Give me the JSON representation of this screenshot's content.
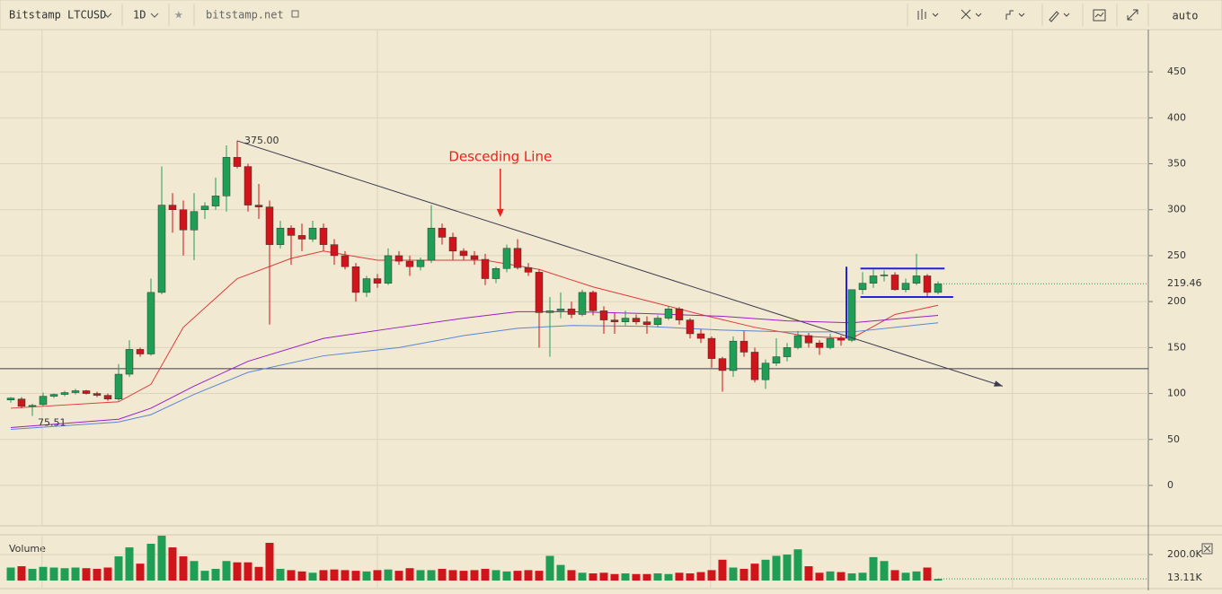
{
  "toolbar": {
    "symbol": "Bitstamp LTCUSD",
    "interval": "1D",
    "source": "bitstamp.net",
    "scale": "auto"
  },
  "chart_data": {
    "type": "candlestick",
    "up_color": "#1f9e55",
    "down_color": "#d0141b",
    "xlim": [
      -1,
      105.5
    ],
    "ylim": [
      -43,
      496
    ],
    "yticks": [
      0,
      50,
      100,
      150,
      200,
      250,
      300,
      350,
      400,
      450
    ],
    "xgrid": [
      2.9,
      34,
      64.9,
      92.9
    ],
    "grid": true,
    "open": [
      93,
      94,
      86,
      88,
      97,
      99,
      101,
      103,
      100,
      98,
      94,
      121,
      148,
      143,
      210,
      305,
      300,
      278,
      300,
      304,
      315,
      357,
      347,
      305,
      303,
      262,
      280,
      272,
      268,
      280,
      262,
      250,
      238,
      210,
      225,
      220,
      250,
      244,
      238,
      245,
      280,
      270,
      255,
      250,
      246,
      225,
      236,
      258,
      237,
      232,
      188,
      190,
      192,
      186,
      210,
      190,
      180,
      178,
      182,
      178,
      175,
      182,
      192,
      180,
      165,
      160,
      138,
      125,
      157,
      145,
      115,
      133,
      140,
      150,
      163,
      155,
      150,
      160,
      158,
      213,
      220,
      228,
      229,
      213,
      220,
      228,
      210
    ],
    "high": [
      96,
      96,
      89,
      101,
      100,
      103,
      105,
      104,
      102,
      100,
      132,
      158,
      150,
      225,
      347,
      318,
      310,
      318,
      308,
      335,
      370,
      375,
      350,
      328,
      310,
      288,
      283,
      285,
      288,
      285,
      268,
      255,
      242,
      228,
      230,
      258,
      255,
      250,
      248,
      305,
      285,
      275,
      258,
      255,
      252,
      238,
      262,
      268,
      242,
      235,
      205,
      210,
      200,
      213,
      212,
      195,
      188,
      190,
      186,
      184,
      185,
      195,
      194,
      182,
      170,
      162,
      140,
      162,
      168,
      150,
      137,
      160,
      155,
      168,
      166,
      158,
      165,
      163,
      213,
      232,
      235,
      234,
      232,
      225,
      252,
      230,
      222
    ],
    "low": [
      90,
      84,
      75.51,
      86,
      95,
      97,
      99,
      99,
      96,
      92,
      92,
      118,
      140,
      141,
      208,
      275,
      250,
      245,
      290,
      300,
      298,
      345,
      298,
      290,
      175,
      258,
      240,
      255,
      265,
      255,
      240,
      235,
      200,
      205,
      215,
      218,
      240,
      228,
      234,
      242,
      262,
      245,
      245,
      240,
      218,
      220,
      232,
      235,
      228,
      150,
      140,
      182,
      182,
      184,
      185,
      165,
      165,
      174,
      175,
      165,
      172,
      180,
      175,
      160,
      155,
      128,
      102,
      118,
      140,
      112,
      105,
      130,
      135,
      148,
      150,
      142,
      148,
      152,
      156,
      208,
      215,
      222,
      212,
      210,
      218,
      205,
      208
    ],
    "close": [
      95,
      86,
      87,
      97,
      99,
      101,
      103,
      100,
      98,
      94,
      121,
      148,
      143,
      210,
      305,
      300,
      278,
      298,
      304,
      315,
      357,
      347,
      305,
      303,
      262,
      280,
      272,
      268,
      280,
      262,
      250,
      238,
      210,
      225,
      220,
      250,
      244,
      238,
      245,
      280,
      270,
      255,
      250,
      246,
      225,
      236,
      258,
      237,
      232,
      188,
      190,
      192,
      186,
      210,
      190,
      180,
      178,
      182,
      178,
      175,
      182,
      192,
      180,
      165,
      160,
      138,
      125,
      157,
      145,
      115,
      133,
      140,
      150,
      163,
      155,
      150,
      160,
      158,
      213,
      220,
      228,
      229,
      213,
      220,
      228,
      210,
      219.46
    ],
    "moving_averages": [
      {
        "color": "#e03a3a",
        "x": [
          0,
          10,
          13,
          16,
          21,
          26,
          29,
          34,
          39,
          44,
          49,
          54,
          59,
          64,
          69,
          74,
          78,
          82,
          86
        ],
        "values": [
          84,
          91,
          110,
          172,
          225,
          247,
          255,
          245,
          245,
          245,
          235,
          216,
          201,
          186,
          172,
          162,
          160,
          186,
          196
        ]
      },
      {
        "color": "#9b1fc7",
        "x": [
          0,
          10,
          13,
          17,
          22,
          29,
          36,
          42,
          47,
          52,
          59,
          66,
          72,
          78,
          86
        ],
        "values": [
          63,
          72,
          84,
          108,
          135,
          160,
          172,
          182,
          189,
          189,
          187,
          184,
          179,
          177,
          185
        ]
      },
      {
        "color": "#5b86d6",
        "x": [
          0,
          10,
          13,
          17,
          22,
          29,
          36,
          42,
          47,
          52,
          59,
          66,
          72,
          78,
          86
        ],
        "values": [
          61,
          69,
          77,
          99,
          123,
          141,
          150,
          163,
          171,
          174,
          173,
          169,
          167,
          167,
          177
        ]
      }
    ],
    "high_label": {
      "index": 21,
      "value": 375,
      "label": "375.00"
    },
    "low_label": {
      "index": 2,
      "value": 75.51,
      "label": "75.51"
    },
    "trendline": {
      "from": [
        21,
        375
      ],
      "to": [
        92,
        108
      ],
      "color": "#3c3c50"
    },
    "support": {
      "value": 127,
      "color": "#3c3c50"
    },
    "channel": {
      "color": "#2222dd",
      "pole_index": 77.5,
      "pole_low": 160,
      "pole_high": 238,
      "top": 236,
      "bottom": 205,
      "from": 78.8,
      "top_to": 86.6,
      "bottom_to": 87.4
    },
    "annotation": {
      "text": "Desceding Line",
      "index": 45.4,
      "value": 292,
      "color": "#e8231b"
    },
    "volume": {
      "label": "Volume",
      "ylim": [
        0,
        345
      ],
      "yticks": [
        {
          "value": 200,
          "label": "200.0K"
        }
      ],
      "values": [
        100,
        110,
        90,
        105,
        100,
        95,
        100,
        95,
        90,
        100,
        186,
        255,
        130,
        283,
        345,
        255,
        186,
        150,
        75,
        90,
        150,
        140,
        140,
        105,
        290,
        90,
        80,
        70,
        60,
        80,
        85,
        80,
        75,
        70,
        80,
        85,
        75,
        95,
        80,
        80,
        90,
        80,
        75,
        80,
        90,
        80,
        70,
        75,
        80,
        75,
        190,
        120,
        80,
        60,
        55,
        60,
        50,
        55,
        50,
        50,
        55,
        50,
        60,
        55,
        65,
        80,
        160,
        100,
        90,
        130,
        160,
        190,
        200,
        240,
        110,
        60,
        70,
        65,
        55,
        60,
        180,
        150,
        80,
        60,
        70,
        100,
        13.11
      ],
      "last": {
        "value": 13.11,
        "label": "13.11K"
      }
    }
  }
}
